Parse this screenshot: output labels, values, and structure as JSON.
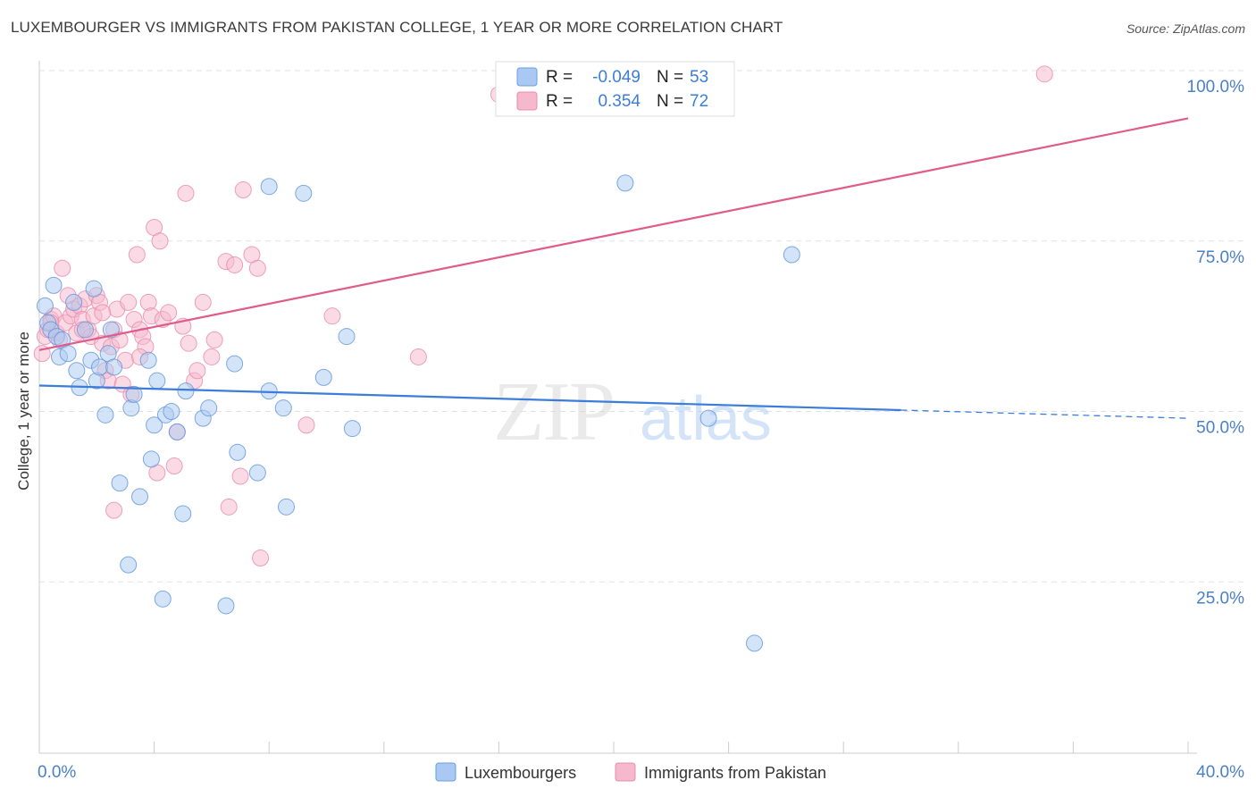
{
  "title": "LUXEMBOURGER VS IMMIGRANTS FROM PAKISTAN COLLEGE, 1 YEAR OR MORE CORRELATION CHART",
  "source": "Source: ZipAtlas.com",
  "colors": {
    "blue": "#3b7dd8",
    "blue_fill": "#a9c9f2",
    "pink": "#e05a8a",
    "pink_fill": "#f6b8cc",
    "grid": "#dde2ea",
    "tick_label": "#4a7fc9"
  },
  "chart_data": {
    "type": "scatter",
    "title": "LUXEMBOURGER VS IMMIGRANTS FROM PAKISTAN COLLEGE, 1 YEAR OR MORE CORRELATION CHART",
    "xlabel": "",
    "ylabel": "College, 1 year or more",
    "xlim": [
      0,
      40
    ],
    "ylim": [
      0,
      105
    ],
    "x_tick_labels": [
      "0.0%",
      "40.0%"
    ],
    "y_ticks": [
      25,
      50,
      75,
      100
    ],
    "y_tick_labels": [
      "25.0%",
      "50.0%",
      "75.0%",
      "100.0%"
    ],
    "watermark": {
      "zip": "ZIP",
      "atlas": "atlas"
    },
    "legend_stats": [
      {
        "r_label": "R =",
        "r_value": "-0.049",
        "n_label": "N =",
        "n_value": "53"
      },
      {
        "r_label": "R =",
        "r_value": "0.354",
        "n_label": "N =",
        "n_value": "72"
      }
    ],
    "series": [
      {
        "name": "Luxembourgers",
        "trend": {
          "x0": 0,
          "y0": 53.8,
          "x1": 40,
          "y1": 49.0,
          "solid_until": 30.0
        },
        "points": [
          [
            0.2,
            65.5
          ],
          [
            0.3,
            63
          ],
          [
            0.4,
            62
          ],
          [
            0.5,
            68.5
          ],
          [
            0.6,
            61
          ],
          [
            0.7,
            58
          ],
          [
            0.8,
            60.5
          ],
          [
            1.0,
            58.5
          ],
          [
            1.2,
            66
          ],
          [
            1.3,
            56
          ],
          [
            1.4,
            53.5
          ],
          [
            1.6,
            62
          ],
          [
            1.8,
            57.5
          ],
          [
            1.9,
            68
          ],
          [
            2.0,
            54.5
          ],
          [
            2.1,
            56.5
          ],
          [
            2.3,
            49.5
          ],
          [
            2.4,
            58.5
          ],
          [
            2.5,
            62
          ],
          [
            2.6,
            56.5
          ],
          [
            2.8,
            39.5
          ],
          [
            3.1,
            27.5
          ],
          [
            3.2,
            50.5
          ],
          [
            3.3,
            52.5
          ],
          [
            3.5,
            37.5
          ],
          [
            3.8,
            57.5
          ],
          [
            3.9,
            43
          ],
          [
            4.0,
            48
          ],
          [
            4.1,
            54.5
          ],
          [
            4.3,
            22.5
          ],
          [
            4.4,
            49.5
          ],
          [
            4.6,
            50
          ],
          [
            4.8,
            47
          ],
          [
            5.0,
            35
          ],
          [
            5.1,
            53
          ],
          [
            5.7,
            49
          ],
          [
            5.9,
            50.5
          ],
          [
            6.5,
            21.5
          ],
          [
            6.8,
            57
          ],
          [
            6.9,
            44
          ],
          [
            7.6,
            41
          ],
          [
            8.0,
            53
          ],
          [
            8.0,
            83
          ],
          [
            8.5,
            50.5
          ],
          [
            8.6,
            36
          ],
          [
            9.2,
            82
          ],
          [
            9.9,
            55
          ],
          [
            10.7,
            61
          ],
          [
            10.9,
            47.5
          ],
          [
            20.4,
            83.5
          ],
          [
            23.3,
            49
          ],
          [
            24.9,
            16
          ],
          [
            26.2,
            73
          ]
        ]
      },
      {
        "name": "Immigrants from Pakistan",
        "trend": {
          "x0": 0,
          "y0": 59.0,
          "x1": 40,
          "y1": 93.0
        },
        "points": [
          [
            0.1,
            58.5
          ],
          [
            0.2,
            61
          ],
          [
            0.3,
            62
          ],
          [
            0.4,
            63.5
          ],
          [
            0.5,
            64
          ],
          [
            0.6,
            61.5
          ],
          [
            0.7,
            60.5
          ],
          [
            0.8,
            71
          ],
          [
            0.9,
            63
          ],
          [
            1.0,
            67
          ],
          [
            1.1,
            64
          ],
          [
            1.2,
            65
          ],
          [
            1.3,
            61.5
          ],
          [
            1.4,
            65.5
          ],
          [
            1.5,
            63.5
          ],
          [
            1.6,
            66.5
          ],
          [
            1.7,
            62
          ],
          [
            1.8,
            61
          ],
          [
            1.9,
            64
          ],
          [
            2.0,
            67
          ],
          [
            2.1,
            66
          ],
          [
            2.2,
            60
          ],
          [
            2.3,
            56
          ],
          [
            2.4,
            54.5
          ],
          [
            2.5,
            59.5
          ],
          [
            2.6,
            62
          ],
          [
            2.7,
            65
          ],
          [
            2.8,
            60.5
          ],
          [
            2.9,
            54
          ],
          [
            3.0,
            57.5
          ],
          [
            3.1,
            66
          ],
          [
            3.2,
            52.5
          ],
          [
            3.3,
            63.5
          ],
          [
            3.4,
            73
          ],
          [
            3.5,
            62
          ],
          [
            3.6,
            61
          ],
          [
            3.7,
            59.5
          ],
          [
            3.8,
            66
          ],
          [
            3.9,
            64
          ],
          [
            4.0,
            77
          ],
          [
            4.1,
            41
          ],
          [
            4.2,
            75
          ],
          [
            4.3,
            63.5
          ],
          [
            4.5,
            64.5
          ],
          [
            4.7,
            42
          ],
          [
            4.8,
            47
          ],
          [
            5.0,
            62.5
          ],
          [
            5.1,
            82
          ],
          [
            5.4,
            54.5
          ],
          [
            5.5,
            56
          ],
          [
            5.7,
            66
          ],
          [
            6.1,
            60.5
          ],
          [
            6.5,
            72
          ],
          [
            6.6,
            36
          ],
          [
            6.8,
            71.5
          ],
          [
            7.0,
            40.5
          ],
          [
            7.1,
            82.5
          ],
          [
            7.4,
            73
          ],
          [
            7.6,
            71
          ],
          [
            7.7,
            28.5
          ],
          [
            9.3,
            48
          ],
          [
            10.2,
            64
          ],
          [
            13.2,
            58
          ],
          [
            16.0,
            96.5
          ],
          [
            35.0,
            99.5
          ],
          [
            2.6,
            35.5
          ],
          [
            1.5,
            62
          ],
          [
            3.5,
            58
          ],
          [
            0.4,
            63
          ],
          [
            2.2,
            64.5
          ],
          [
            5.2,
            60
          ],
          [
            6.0,
            58
          ]
        ]
      }
    ]
  }
}
